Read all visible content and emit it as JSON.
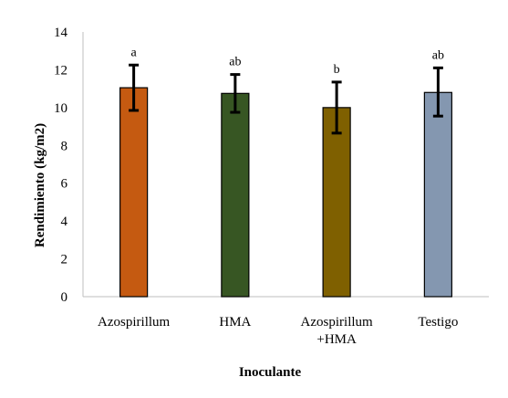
{
  "chart_data": {
    "type": "bar",
    "title": "",
    "xlabel": "Inoculante",
    "ylabel": "Rendimiento (kg/m2)",
    "ylim": [
      0,
      14
    ],
    "yticks": [
      0,
      2,
      4,
      6,
      8,
      10,
      12,
      14
    ],
    "grid": false,
    "categories": [
      [
        "Azospirillum"
      ],
      [
        "HMA"
      ],
      [
        "Azospirillum",
        "+HMA"
      ],
      [
        "Testigo"
      ]
    ],
    "values": [
      11.05,
      10.75,
      10.0,
      10.8
    ],
    "error_low": [
      9.85,
      9.75,
      8.65,
      9.55
    ],
    "error_high": [
      12.25,
      11.75,
      11.35,
      12.1
    ],
    "significance": [
      "a",
      "ab",
      "b",
      "ab"
    ],
    "colors": [
      "#C55A11",
      "#375623",
      "#7F6000",
      "#8497B0"
    ]
  }
}
